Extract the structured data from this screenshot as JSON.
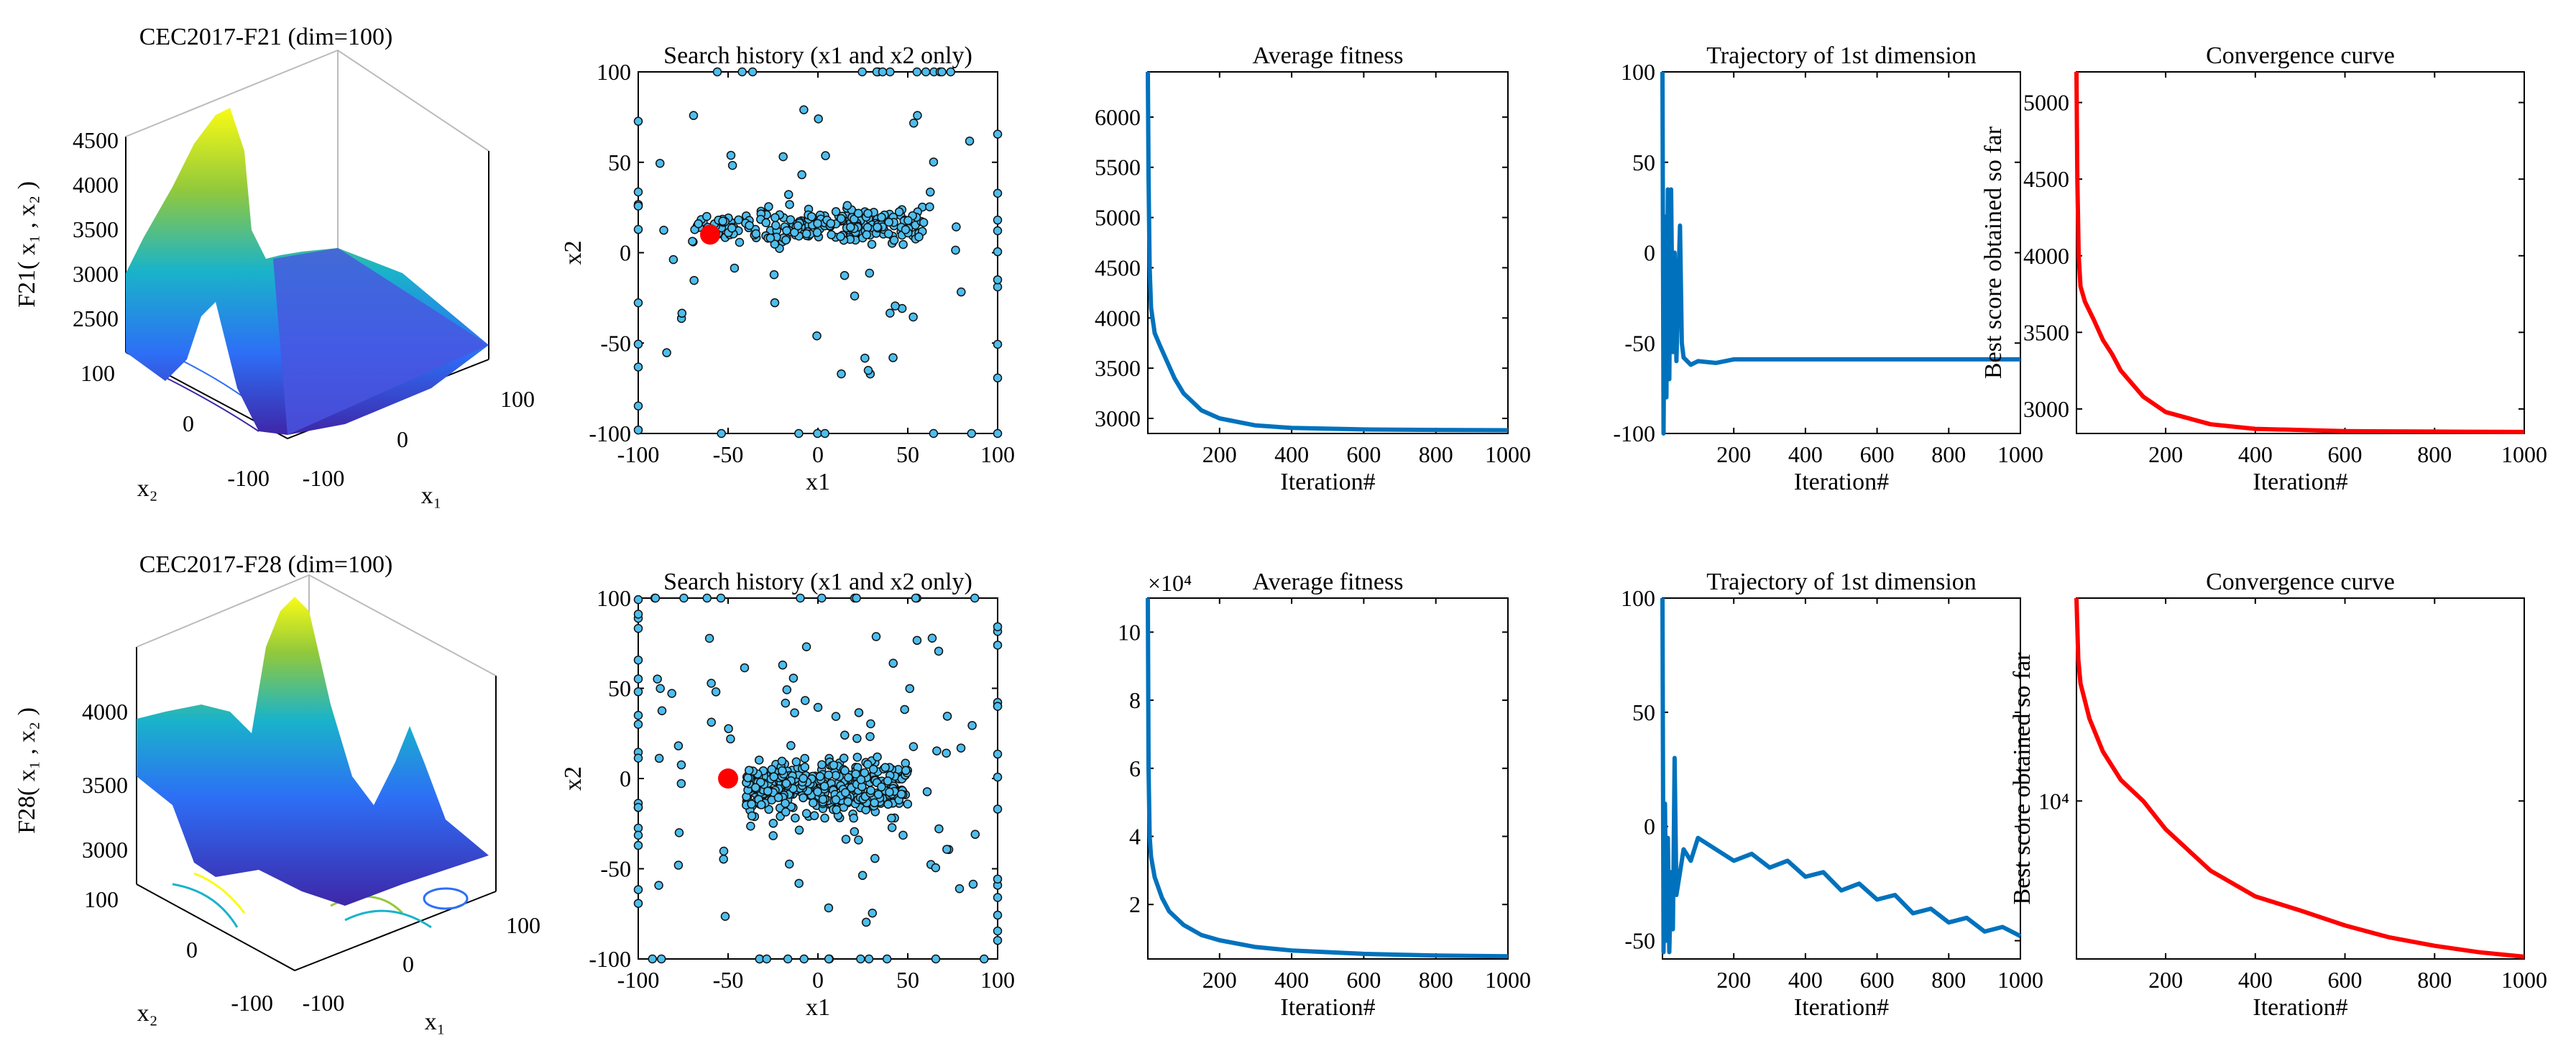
{
  "colors": {
    "line_blue": "#0072BD",
    "line_red": "#FF0000",
    "scatter_fill": "#4DBEEE",
    "best_point": "#FF0000"
  },
  "rows": [
    {
      "surface": {
        "title": "CEC2017-F21 (dim=100)",
        "zlabel": "F21( x₁ , x₂ )",
        "zticks": [
          "2500",
          "3000",
          "3500",
          "4000",
          "4500"
        ],
        "x2label": "x₂",
        "x1label": "x₁",
        "x2ticks": [
          "100",
          "0",
          "-100"
        ],
        "x1ticks": [
          "-100",
          "0",
          "100"
        ]
      },
      "scatter": {
        "title": "Search history (x1 and x2 only)",
        "xlabel": "x1",
        "ylabel": "x2",
        "xlim": [
          -100,
          100
        ],
        "ylim": [
          -100,
          100
        ],
        "xticks": [
          "-100",
          "-50",
          "0",
          "50",
          "100"
        ],
        "yticks": [
          "-100",
          "-50",
          "0",
          "50",
          "100"
        ],
        "best": [
          -60,
          10
        ]
      },
      "avg": {
        "title": "Average fitness",
        "xlabel": "Iteration#",
        "xlim": [
          1,
          1000
        ],
        "ylim": [
          2850,
          6450
        ],
        "xticks": [
          "200",
          "400",
          "600",
          "800",
          "1000"
        ],
        "yticks": [
          "3000",
          "3500",
          "4000",
          "4500",
          "5000",
          "5500",
          "6000"
        ],
        "exponent": "",
        "curve": [
          [
            1,
            6450
          ],
          [
            3,
            5400
          ],
          [
            6,
            4500
          ],
          [
            10,
            4100
          ],
          [
            20,
            3850
          ],
          [
            35,
            3720
          ],
          [
            50,
            3600
          ],
          [
            75,
            3400
          ],
          [
            100,
            3250
          ],
          [
            150,
            3080
          ],
          [
            200,
            3000
          ],
          [
            300,
            2930
          ],
          [
            400,
            2905
          ],
          [
            600,
            2890
          ],
          [
            800,
            2885
          ],
          [
            1000,
            2882
          ]
        ]
      },
      "traj": {
        "title": "Trajectory of 1st dimension",
        "xlabel": "Iteration#",
        "xlim": [
          1,
          1000
        ],
        "ylim": [
          -100,
          100
        ],
        "xticks": [
          "200",
          "400",
          "600",
          "800",
          "1000"
        ],
        "yticks": [
          "-100",
          "-50",
          "0",
          "50",
          "100"
        ],
        "curve": [
          [
            1,
            100
          ],
          [
            4,
            -100
          ],
          [
            8,
            20
          ],
          [
            12,
            -80
          ],
          [
            16,
            35
          ],
          [
            20,
            -70
          ],
          [
            25,
            35
          ],
          [
            30,
            -55
          ],
          [
            35,
            0
          ],
          [
            40,
            -60
          ],
          [
            45,
            -20
          ],
          [
            50,
            15
          ],
          [
            55,
            -50
          ],
          [
            60,
            -58
          ],
          [
            80,
            -62
          ],
          [
            100,
            -60
          ],
          [
            150,
            -61
          ],
          [
            200,
            -59
          ],
          [
            300,
            -59
          ],
          [
            500,
            -59
          ],
          [
            800,
            -59
          ],
          [
            1000,
            -59
          ]
        ]
      },
      "conv": {
        "title": "Convergence curve",
        "xlabel": "Iteration#",
        "ylabel": "Best score obtained so far",
        "xlim": [
          1,
          1000
        ],
        "ylim": [
          2840,
          5200
        ],
        "yscale": "linear",
        "xticks": [
          "200",
          "400",
          "600",
          "800",
          "1000"
        ],
        "yticks": [
          "3000",
          "3500",
          "4000",
          "4500",
          "5000"
        ],
        "curve": [
          [
            1,
            5200
          ],
          [
            3,
            4500
          ],
          [
            6,
            4000
          ],
          [
            10,
            3800
          ],
          [
            20,
            3700
          ],
          [
            40,
            3580
          ],
          [
            60,
            3450
          ],
          [
            80,
            3360
          ],
          [
            100,
            3250
          ],
          [
            150,
            3080
          ],
          [
            200,
            2980
          ],
          [
            300,
            2900
          ],
          [
            400,
            2870
          ],
          [
            600,
            2855
          ],
          [
            800,
            2852
          ],
          [
            1000,
            2850
          ]
        ]
      }
    },
    {
      "surface": {
        "title": "CEC2017-F28 (dim=100)",
        "zlabel": "F28( x₁ , x₂ )",
        "zticks": [
          "3000",
          "3500",
          "4000"
        ],
        "x2label": "x₂",
        "x1label": "x₁",
        "x2ticks": [
          "100",
          "0",
          "-100"
        ],
        "x1ticks": [
          "-100",
          "0",
          "100"
        ]
      },
      "scatter": {
        "title": "Search history (x1 and x2 only)",
        "xlabel": "x1",
        "ylabel": "x2",
        "xlim": [
          -100,
          100
        ],
        "ylim": [
          -100,
          100
        ],
        "xticks": [
          "-100",
          "-50",
          "0",
          "50",
          "100"
        ],
        "yticks": [
          "-100",
          "-50",
          "0",
          "50",
          "100"
        ],
        "best": [
          -50,
          0
        ]
      },
      "avg": {
        "title": "Average fitness",
        "xlabel": "Iteration#",
        "xlim": [
          1,
          1000
        ],
        "ylim": [
          0.4,
          11
        ],
        "xticks": [
          "200",
          "400",
          "600",
          "800",
          "1000"
        ],
        "yticks": [
          "2",
          "4",
          "6",
          "8",
          "10"
        ],
        "exponent": "×10⁴",
        "curve": [
          [
            1,
            11
          ],
          [
            3,
            6
          ],
          [
            6,
            4
          ],
          [
            10,
            3.4
          ],
          [
            20,
            2.8
          ],
          [
            40,
            2.2
          ],
          [
            60,
            1.8
          ],
          [
            100,
            1.4
          ],
          [
            150,
            1.1
          ],
          [
            200,
            0.95
          ],
          [
            300,
            0.75
          ],
          [
            400,
            0.65
          ],
          [
            600,
            0.55
          ],
          [
            800,
            0.5
          ],
          [
            1000,
            0.48
          ]
        ]
      },
      "traj": {
        "title": "Trajectory of 1st dimension",
        "xlabel": "Iteration#",
        "xlim": [
          1,
          1000
        ],
        "ylim": [
          -58,
          100
        ],
        "xticks": [
          "200",
          "400",
          "600",
          "800",
          "1000"
        ],
        "yticks": [
          "-50",
          "0",
          "50",
          "100"
        ],
        "curve": [
          [
            1,
            100
          ],
          [
            4,
            -55
          ],
          [
            8,
            10
          ],
          [
            12,
            -50
          ],
          [
            16,
            -5
          ],
          [
            20,
            -55
          ],
          [
            25,
            -20
          ],
          [
            30,
            -45
          ],
          [
            35,
            30
          ],
          [
            40,
            -30
          ],
          [
            50,
            -20
          ],
          [
            60,
            -10
          ],
          [
            80,
            -15
          ],
          [
            100,
            -5
          ],
          [
            150,
            -10
          ],
          [
            200,
            -15
          ],
          [
            250,
            -12
          ],
          [
            300,
            -18
          ],
          [
            350,
            -15
          ],
          [
            400,
            -22
          ],
          [
            450,
            -20
          ],
          [
            500,
            -28
          ],
          [
            550,
            -25
          ],
          [
            600,
            -32
          ],
          [
            650,
            -30
          ],
          [
            700,
            -38
          ],
          [
            750,
            -36
          ],
          [
            800,
            -42
          ],
          [
            850,
            -40
          ],
          [
            900,
            -46
          ],
          [
            950,
            -44
          ],
          [
            1000,
            -48
          ]
        ]
      },
      "conv": {
        "title": "Convergence curve",
        "xlabel": "Iteration#",
        "ylabel": "Best score obtained so far",
        "xlim": [
          1,
          1000
        ],
        "ylim": [
          4900,
          25000
        ],
        "yscale": "log",
        "xticks": [
          "200",
          "400",
          "600",
          "800",
          "1000"
        ],
        "yticks": [
          "10⁴"
        ],
        "ytick_values": [
          10000
        ],
        "curve": [
          [
            1,
            25000
          ],
          [
            5,
            19000
          ],
          [
            10,
            17000
          ],
          [
            30,
            14500
          ],
          [
            60,
            12500
          ],
          [
            100,
            11000
          ],
          [
            150,
            10000
          ],
          [
            200,
            8800
          ],
          [
            300,
            7300
          ],
          [
            400,
            6500
          ],
          [
            500,
            6100
          ],
          [
            600,
            5700
          ],
          [
            700,
            5400
          ],
          [
            800,
            5200
          ],
          [
            900,
            5050
          ],
          [
            1000,
            4950
          ]
        ]
      }
    }
  ]
}
